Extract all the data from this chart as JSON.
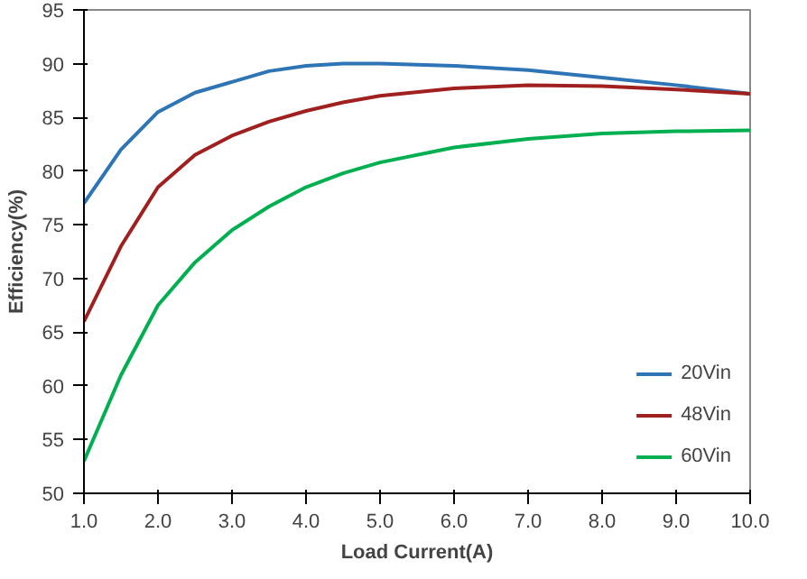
{
  "chart_data": {
    "type": "line",
    "xlabel": "Load Current(A)",
    "ylabel": "Efficiency(%)",
    "xlim": [
      1,
      10
    ],
    "ylim": [
      50,
      95
    ],
    "xticks": [
      {
        "value": 1,
        "label": "1.0"
      },
      {
        "value": 2,
        "label": "2.0"
      },
      {
        "value": 3,
        "label": "3.0"
      },
      {
        "value": 4,
        "label": "4.0"
      },
      {
        "value": 5,
        "label": "5.0"
      },
      {
        "value": 6,
        "label": "6.0"
      },
      {
        "value": 7,
        "label": "7.0"
      },
      {
        "value": 8,
        "label": "8.0"
      },
      {
        "value": 9,
        "label": "9.0"
      },
      {
        "value": 10,
        "label": "10.0"
      }
    ],
    "yticks": [
      50,
      55,
      60,
      65,
      70,
      75,
      80,
      85,
      90,
      95
    ],
    "x": [
      1,
      1.5,
      2,
      2.5,
      3,
      3.5,
      4,
      4.5,
      5,
      6,
      7,
      8,
      9,
      10
    ],
    "series": [
      {
        "name": "20Vin",
        "color": "#2e75b6",
        "values": [
          77,
          82,
          85.5,
          87.3,
          88.3,
          89.3,
          89.8,
          90,
          90,
          89.8,
          89.4,
          88.7,
          88,
          87.2
        ]
      },
      {
        "name": "48Vin",
        "color": "#a0201f",
        "values": [
          66,
          73,
          78.5,
          81.5,
          83.3,
          84.6,
          85.6,
          86.4,
          87,
          87.7,
          88,
          87.9,
          87.6,
          87.2
        ]
      },
      {
        "name": "60Vin",
        "color": "#00b050",
        "values": [
          53,
          61,
          67.5,
          71.5,
          74.5,
          76.7,
          78.5,
          79.8,
          80.8,
          82.2,
          83,
          83.5,
          83.7,
          83.8
        ]
      }
    ],
    "legend": "bottom right",
    "grid": false
  }
}
